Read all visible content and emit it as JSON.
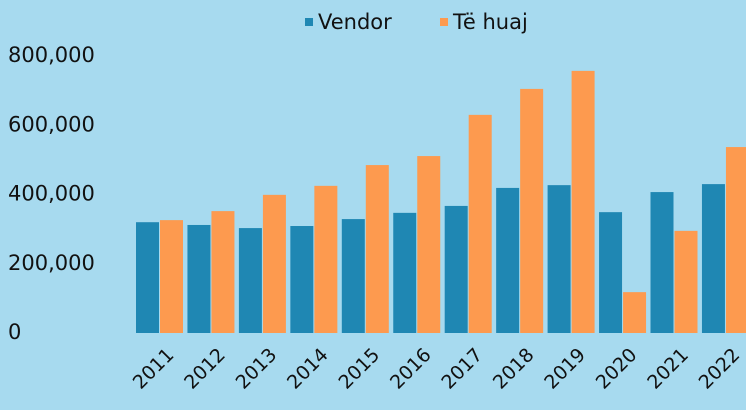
{
  "chart_data": {
    "type": "bar",
    "categories": [
      "2011",
      "2012",
      "2013",
      "2014",
      "2015",
      "2016",
      "2017",
      "2018",
      "2019",
      "2020",
      "2021",
      "2022"
    ],
    "series": [
      {
        "name": "Vendor",
        "color": "#1f87b3",
        "values": [
          320000,
          312000,
          303000,
          309000,
          329000,
          347000,
          367000,
          419000,
          427000,
          349000,
          407000,
          430000
        ]
      },
      {
        "name": "Të huaj",
        "color": "#fd9a4f",
        "values": [
          326000,
          352000,
          399000,
          425000,
          485000,
          511000,
          630000,
          705000,
          757000,
          118000,
          295000,
          537000
        ]
      }
    ],
    "ylim": [
      0,
      800000
    ],
    "yticks": [
      0,
      {
        "value": 200000,
        "label": "200,000"
      },
      {
        "value": 400000,
        "label": "400,000"
      },
      {
        "value": 600000,
        "label": "600,000"
      },
      {
        "value": 800000,
        "label": "800,000"
      }
    ],
    "grid": false,
    "legend": "top"
  }
}
